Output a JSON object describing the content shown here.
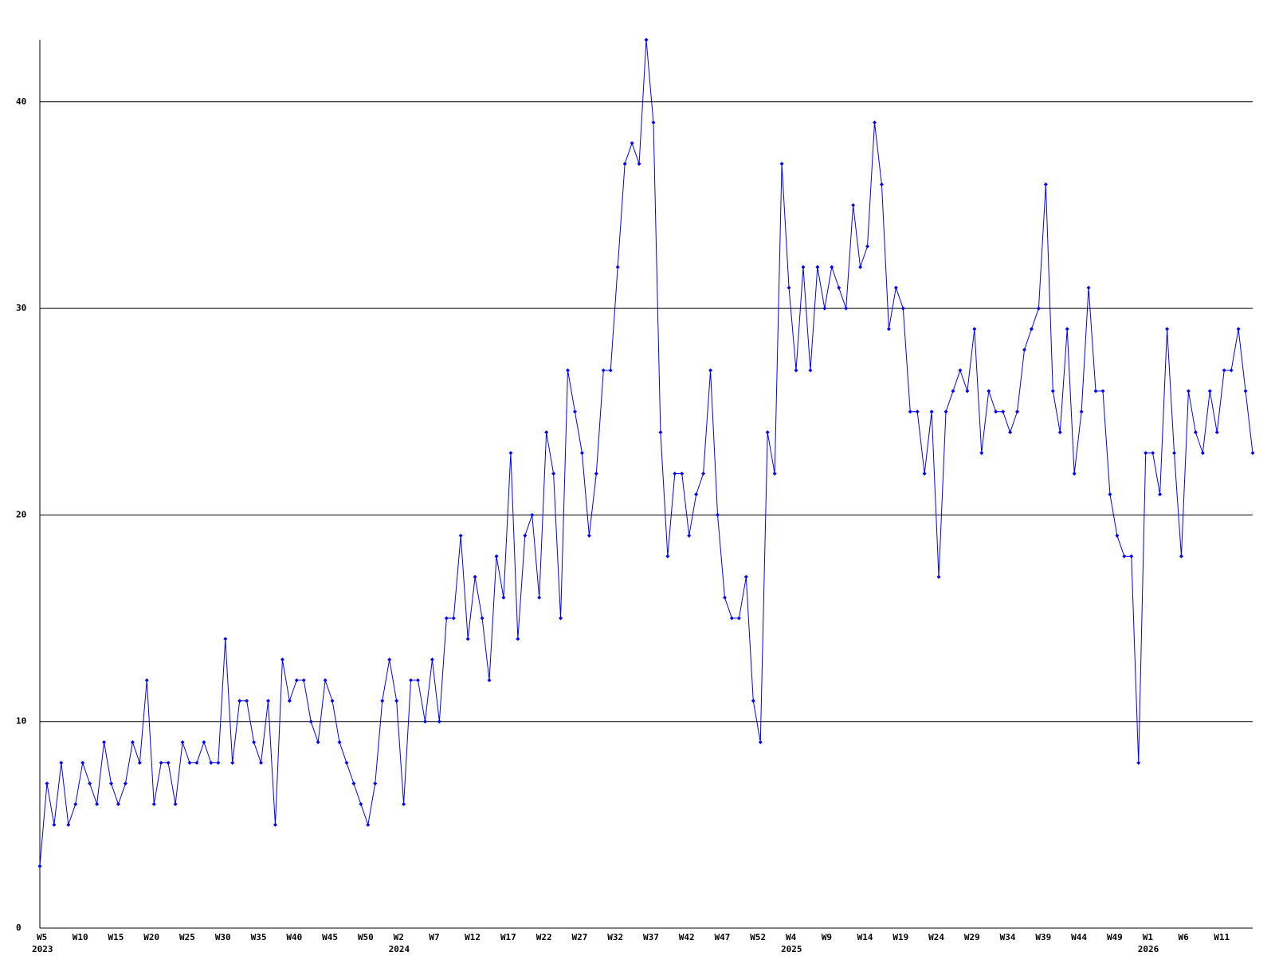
{
  "chart_data": {
    "type": "line",
    "color": "#0000ff",
    "grid": true,
    "ylim": [
      0,
      43
    ],
    "yticks": [
      0,
      10,
      20,
      30,
      40
    ],
    "categories": [
      "W5",
      null,
      null,
      null,
      null,
      "W10",
      null,
      null,
      null,
      null,
      "W15",
      null,
      null,
      null,
      null,
      "W20",
      null,
      null,
      null,
      null,
      "W25",
      null,
      null,
      null,
      null,
      "W30",
      null,
      null,
      null,
      null,
      "W35",
      null,
      null,
      null,
      null,
      "W40",
      null,
      null,
      null,
      null,
      "W45",
      null,
      null,
      null,
      null,
      "W50",
      null,
      null,
      null,
      null,
      "W2",
      null,
      null,
      null,
      null,
      "W7",
      null,
      null,
      null,
      null,
      "W12",
      null,
      null,
      null,
      null,
      "W17",
      null,
      null,
      null,
      null,
      "W22",
      null,
      null,
      null,
      null,
      "W27",
      null,
      null,
      null,
      null,
      "W32",
      null,
      null,
      null,
      null,
      "W37",
      null,
      null,
      null,
      null,
      "W42",
      null,
      null,
      null,
      null,
      "W47",
      null,
      null,
      null,
      null,
      "W52",
      null,
      null,
      null,
      null,
      "W4",
      null,
      null,
      null,
      null,
      "W9",
      null,
      null,
      null,
      null,
      "W14",
      null,
      null,
      null,
      null,
      "W19",
      null,
      null,
      null,
      null,
      "W24",
      null,
      null,
      null,
      null,
      "W29",
      null,
      null,
      null,
      null,
      "W34",
      null,
      null,
      null,
      null,
      "W39",
      null,
      null,
      null,
      null,
      "W44",
      null,
      null,
      null,
      null,
      "W49",
      null,
      null,
      null,
      null,
      "W1",
      null,
      null,
      null,
      null,
      "W6",
      null,
      null,
      null,
      null,
      "W11",
      null,
      null,
      null,
      null,
      null
    ],
    "category_years": [
      "2023",
      null,
      null,
      null,
      null,
      null,
      null,
      null,
      null,
      null,
      null,
      null,
      null,
      null,
      null,
      null,
      null,
      null,
      null,
      null,
      null,
      null,
      null,
      null,
      null,
      null,
      null,
      null,
      null,
      null,
      null,
      null,
      null,
      null,
      null,
      null,
      null,
      null,
      null,
      null,
      null,
      null,
      null,
      null,
      null,
      null,
      null,
      null,
      null,
      null,
      "2024",
      null,
      null,
      null,
      null,
      null,
      null,
      null,
      null,
      null,
      null,
      null,
      null,
      null,
      null,
      null,
      null,
      null,
      null,
      null,
      null,
      null,
      null,
      null,
      null,
      null,
      null,
      null,
      null,
      null,
      null,
      null,
      null,
      null,
      null,
      null,
      null,
      null,
      null,
      null,
      null,
      null,
      null,
      null,
      null,
      null,
      null,
      null,
      null,
      null,
      null,
      null,
      null,
      null,
      null,
      "2025",
      null,
      null,
      null,
      null,
      null,
      null,
      null,
      null,
      null,
      null,
      null,
      null,
      null,
      null,
      null,
      null,
      null,
      null,
      null,
      null,
      null,
      null,
      null,
      null,
      null,
      null,
      null,
      null,
      null,
      null,
      null,
      null,
      null,
      null,
      null,
      null,
      null,
      null,
      null,
      null,
      null,
      null,
      null,
      null,
      null,
      null,
      null,
      null,
      null,
      "2026",
      null,
      null,
      null,
      null,
      null,
      null,
      null,
      null,
      null,
      null,
      null,
      null,
      null,
      null,
      null
    ],
    "values": [
      3,
      7,
      5,
      8,
      5,
      6,
      8,
      7,
      6,
      9,
      7,
      6,
      7,
      9,
      8,
      12,
      6,
      8,
      8,
      6,
      9,
      8,
      8,
      9,
      8,
      8,
      14,
      8,
      11,
      11,
      9,
      8,
      11,
      5,
      13,
      11,
      12,
      12,
      10,
      9,
      12,
      11,
      9,
      8,
      7,
      6,
      5,
      7,
      11,
      13,
      11,
      6,
      12,
      12,
      10,
      13,
      10,
      15,
      15,
      19,
      14,
      17,
      15,
      12,
      18,
      16,
      23,
      14,
      19,
      20,
      16,
      24,
      22,
      15,
      27,
      25,
      23,
      19,
      22,
      27,
      27,
      32,
      37,
      38,
      37,
      43,
      39,
      24,
      18,
      22,
      22,
      19,
      21,
      22,
      27,
      20,
      16,
      15,
      15,
      17,
      11,
      9,
      24,
      22,
      37,
      31,
      27,
      32,
      27,
      32,
      30,
      32,
      31,
      30,
      35,
      32,
      33,
      39,
      36,
      29,
      31,
      30,
      25,
      25,
      22,
      25,
      17,
      25,
      26,
      27,
      26,
      29,
      23,
      26,
      25,
      25,
      24,
      25,
      28,
      29,
      30,
      36,
      26,
      24,
      29,
      22,
      25,
      31,
      26,
      26,
      21,
      19,
      18,
      18,
      8,
      23,
      23,
      21,
      29,
      23,
      18,
      26,
      24,
      23,
      26,
      24,
      27,
      27,
      29,
      26,
      23
    ]
  }
}
